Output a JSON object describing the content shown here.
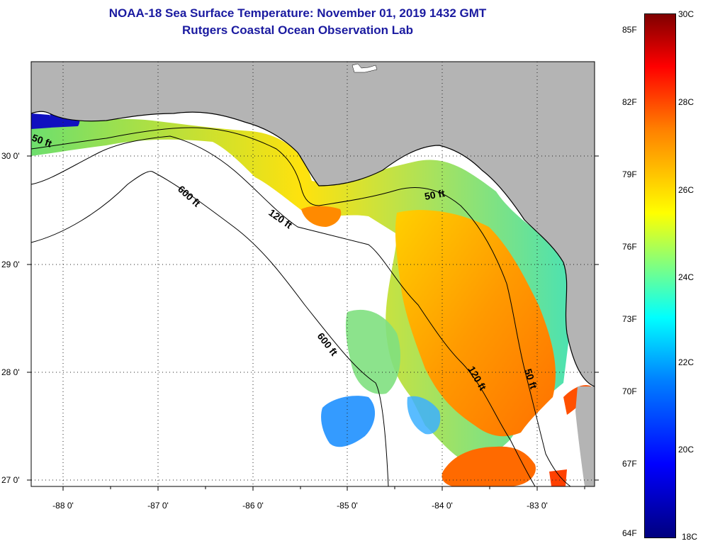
{
  "title": {
    "line1": "NOAA-18 Sea Surface Temperature:  November 01, 2019 1432 GMT",
    "line2": "Rutgers Coastal Ocean Observation Lab"
  },
  "map": {
    "lon_ticks": [
      "-88 0'",
      "-87 0'",
      "-86 0'",
      "-85 0'",
      "-84 0'",
      "-83 0'"
    ],
    "lat_ticks": [
      "30 0'",
      "29 0'",
      "28 0'",
      "27 0'"
    ],
    "contours": [
      "50 ft",
      "600 ft",
      "120 ft",
      "50 ft",
      "600 ft",
      "120 ft",
      "50 ft"
    ],
    "colors": {
      "land": "#b4b4b4",
      "ocean_no_data": "#ffffff"
    }
  },
  "colorbar": {
    "fahrenheit": [
      "85F",
      "82F",
      "79F",
      "76F",
      "73F",
      "70F",
      "67F",
      "64F"
    ],
    "celsius": [
      "30C",
      "28C",
      "26C",
      "24C",
      "22C",
      "20C",
      "18C"
    ]
  }
}
